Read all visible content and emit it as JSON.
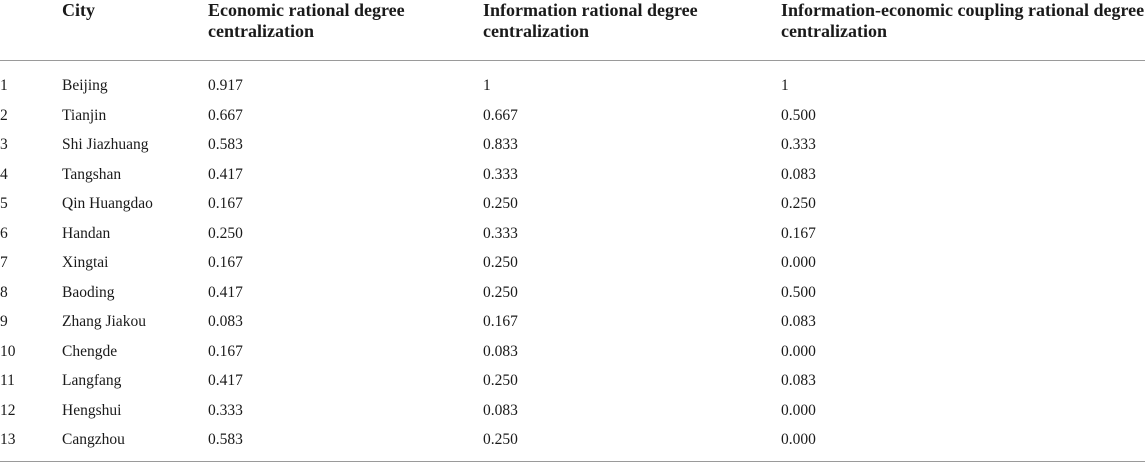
{
  "table": {
    "headers": [
      "",
      "City",
      "Economic rational degree centralization",
      "Information rational degree centralization",
      "Information-economic coupling rational degree centralization"
    ],
    "rows": [
      [
        "1",
        "Beijing",
        "0.917",
        "1",
        "1"
      ],
      [
        "2",
        "Tianjin",
        "0.667",
        "0.667",
        "0.500"
      ],
      [
        "3",
        "Shi Jiazhuang",
        "0.583",
        "0.833",
        "0.333"
      ],
      [
        "4",
        "Tangshan",
        "0.417",
        "0.333",
        "0.083"
      ],
      [
        "5",
        "Qin Huangdao",
        "0.167",
        "0.250",
        "0.250"
      ],
      [
        "6",
        "Handan",
        "0.250",
        "0.333",
        "0.167"
      ],
      [
        "7",
        "Xingtai",
        "0.167",
        "0.250",
        "0.000"
      ],
      [
        "8",
        "Baoding",
        "0.417",
        "0.250",
        "0.500"
      ],
      [
        "9",
        "Zhang Jiakou",
        "0.083",
        "0.167",
        "0.083"
      ],
      [
        "10",
        "Chengde",
        "0.167",
        "0.083",
        "0.000"
      ],
      [
        "11",
        "Langfang",
        "0.417",
        "0.250",
        "0.083"
      ],
      [
        "12",
        "Hengshui",
        "0.333",
        "0.083",
        "0.000"
      ],
      [
        "13",
        "Cangzhou",
        "0.583",
        "0.250",
        "0.000"
      ]
    ]
  }
}
